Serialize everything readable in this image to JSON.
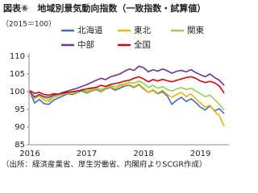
{
  "chart_data": {
    "type": "line",
    "title": "図表⑥　地域別景気動向指数（一致指数・試算値）",
    "subtitle": "（2015＝100）",
    "source": "（出所：経済産業省、厚生労働省、内閣府よりSCGR作成）",
    "categories": [
      "2016",
      null,
      null,
      null,
      null,
      null,
      null,
      null,
      null,
      null,
      null,
      null,
      "2017",
      null,
      null,
      null,
      null,
      null,
      null,
      null,
      null,
      null,
      null,
      null,
      "2018",
      null,
      null,
      null,
      null,
      null,
      null,
      null,
      null,
      null,
      null,
      null,
      "2019",
      null,
      null,
      null,
      null,
      null
    ],
    "series": [
      {
        "name": "北海道",
        "color": "#3a6fc4",
        "values": [
          100.0,
          96.8,
          97.8,
          96.6,
          96.4,
          97.6,
          98.2,
          98.8,
          99.4,
          99.2,
          99.8,
          100.2,
          99.6,
          100.2,
          100.6,
          100.0,
          100.8,
          101.2,
          100.4,
          101.0,
          101.6,
          101.8,
          101.2,
          102.0,
          100.8,
          99.8,
          100.4,
          99.4,
          100.0,
          98.8,
          96.4,
          97.6,
          98.4,
          97.2,
          98.0,
          97.0,
          95.6,
          94.8,
          96.0,
          94.6,
          95.2,
          93.8
        ]
      },
      {
        "name": "東北",
        "color": "#f2b400",
        "values": [
          100.2,
          98.0,
          98.8,
          97.6,
          97.2,
          98.4,
          98.8,
          99.2,
          99.6,
          99.4,
          100.0,
          100.6,
          99.8,
          100.4,
          100.8,
          100.2,
          101.0,
          101.4,
          100.8,
          101.6,
          101.8,
          102.0,
          101.4,
          102.2,
          101.0,
          99.8,
          100.6,
          99.6,
          100.4,
          99.2,
          98.4,
          99.2,
          99.8,
          98.6,
          99.4,
          98.0,
          96.8,
          95.6,
          96.2,
          94.4,
          93.2,
          90.2
        ]
      },
      {
        "name": "関東",
        "color": "#92d050",
        "values": [
          99.6,
          98.6,
          99.0,
          98.2,
          97.8,
          98.6,
          98.9,
          99.2,
          99.6,
          99.8,
          100.0,
          100.4,
          100.2,
          100.8,
          101.0,
          100.6,
          101.2,
          101.6,
          101.4,
          102.0,
          102.2,
          102.6,
          102.4,
          103.0,
          102.4,
          101.2,
          101.8,
          101.0,
          101.4,
          100.6,
          100.2,
          100.8,
          101.2,
          100.6,
          101.0,
          100.2,
          99.4,
          98.6,
          99.0,
          97.8,
          96.4,
          94.8
        ]
      },
      {
        "name": "中部",
        "color": "#7030a0",
        "values": [
          100.0,
          98.5,
          99.2,
          98.6,
          98.4,
          99.0,
          99.3,
          99.8,
          100.2,
          100.6,
          101.0,
          101.5,
          102.0,
          102.6,
          103.2,
          103.8,
          103.4,
          104.2,
          104.6,
          105.0,
          105.8,
          106.4,
          106.0,
          107.2,
          106.8,
          105.6,
          106.2,
          105.8,
          106.4,
          105.9,
          105.2,
          105.8,
          106.0,
          105.6,
          106.2,
          105.4,
          104.8,
          104.2,
          105.0,
          104.0,
          103.2,
          101.8
        ]
      },
      {
        "name": "全国",
        "color": "#e00000",
        "values": [
          100.3,
          99.5,
          99.8,
          99.2,
          99.0,
          99.4,
          99.3,
          99.6,
          99.8,
          100.0,
          100.2,
          100.5,
          100.8,
          101.0,
          101.2,
          101.8,
          101.5,
          102.0,
          102.3,
          102.6,
          103.0,
          103.2,
          103.8,
          104.2,
          103.6,
          102.8,
          103.4,
          103.0,
          103.5,
          103.1,
          102.8,
          103.2,
          103.6,
          104.0,
          104.2,
          103.8,
          103.0,
          102.6,
          102.9,
          102.5,
          101.6,
          99.6
        ]
      }
    ],
    "ylim": [
      85,
      110
    ],
    "yticks": [
      85,
      90,
      95,
      100,
      105,
      110
    ]
  }
}
